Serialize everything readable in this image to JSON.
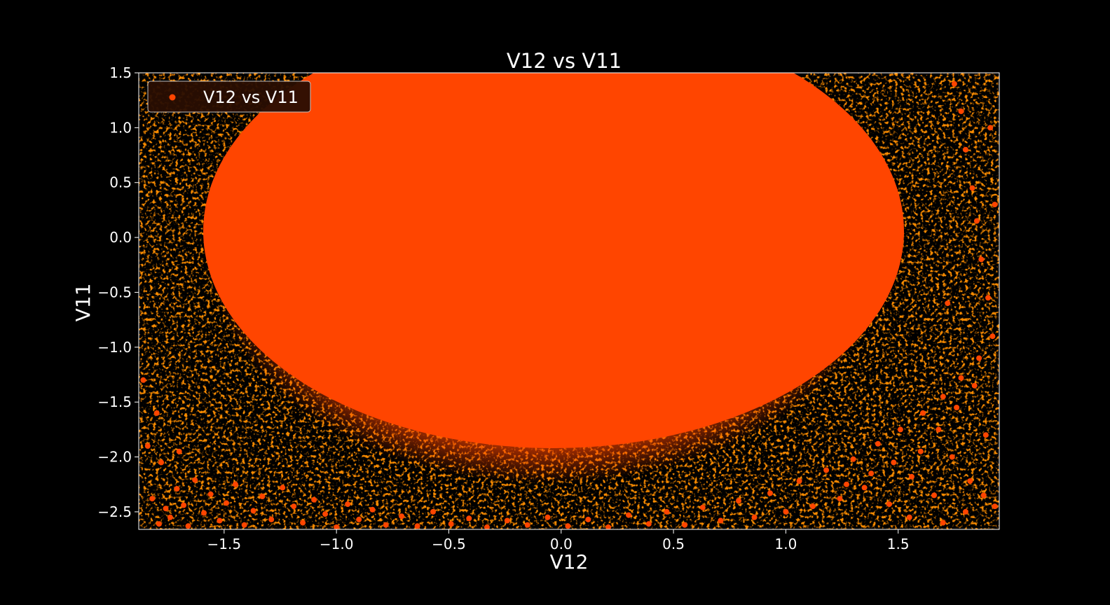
{
  "chart_data": {
    "type": "scatter",
    "title": "V12 vs V11",
    "xlabel": "V12",
    "ylabel": "V11",
    "xlim": [
      -1.88,
      1.95
    ],
    "ylim": [
      -2.66,
      1.5
    ],
    "x_ticks": [
      -1.5,
      -1.0,
      -0.5,
      0.0,
      0.5,
      1.0,
      1.5
    ],
    "x_tick_labels": [
      "−1.5",
      "−1.0",
      "−0.5",
      "0.0",
      "0.5",
      "1.0",
      "1.5"
    ],
    "y_ticks": [
      1.5,
      1.0,
      0.5,
      0.0,
      -0.5,
      -1.0,
      -1.5,
      -2.0,
      -2.5
    ],
    "y_tick_labels": [
      "1.5",
      "1.0",
      "0.5",
      "0.0",
      "−0.5",
      "−1.0",
      "−1.5",
      "−2.0",
      "−2.5"
    ],
    "grid": false,
    "legend_position": "upper-left",
    "series": [
      {
        "name": "V12 vs V11",
        "color": "#ff4500",
        "points": [
          [
            -1.82,
            -2.38
          ],
          [
            -1.79,
            -2.61
          ],
          [
            -1.76,
            -2.47
          ],
          [
            -1.74,
            -2.55
          ],
          [
            -1.71,
            -2.29
          ],
          [
            -1.68,
            -2.44
          ],
          [
            -1.66,
            -2.63
          ],
          [
            -1.63,
            -2.21
          ],
          [
            -1.59,
            -2.51
          ],
          [
            -1.56,
            -2.34
          ],
          [
            -1.52,
            -2.58
          ],
          [
            -1.49,
            -2.42
          ],
          [
            -1.45,
            -2.25
          ],
          [
            -1.41,
            -2.62
          ],
          [
            -1.37,
            -2.49
          ],
          [
            -1.33,
            -2.36
          ],
          [
            -1.29,
            -2.57
          ],
          [
            -1.24,
            -2.28
          ],
          [
            -1.19,
            -2.45
          ],
          [
            -1.15,
            -2.6
          ],
          [
            -1.1,
            -2.39
          ],
          [
            -1.05,
            -2.52
          ],
          [
            -1.0,
            -2.64
          ],
          [
            -0.95,
            -2.43
          ],
          [
            -0.9,
            -2.57
          ],
          [
            -0.84,
            -2.48
          ],
          [
            -0.78,
            -2.62
          ],
          [
            -0.71,
            -2.54
          ],
          [
            -0.64,
            -2.63
          ],
          [
            -0.57,
            -2.5
          ],
          [
            -0.49,
            -2.61
          ],
          [
            -0.41,
            -2.56
          ],
          [
            -0.33,
            -2.64
          ],
          [
            -0.24,
            -2.58
          ],
          [
            -0.15,
            -2.62
          ],
          [
            -0.06,
            -2.55
          ],
          [
            0.03,
            -2.63
          ],
          [
            0.12,
            -2.57
          ],
          [
            0.21,
            -2.64
          ],
          [
            0.3,
            -2.53
          ],
          [
            0.39,
            -2.61
          ],
          [
            0.47,
            -2.5
          ],
          [
            0.55,
            -2.62
          ],
          [
            0.63,
            -2.46
          ],
          [
            0.71,
            -2.58
          ],
          [
            0.79,
            -2.4
          ],
          [
            0.86,
            -2.55
          ],
          [
            0.93,
            -2.33
          ],
          [
            1.0,
            -2.5
          ],
          [
            1.06,
            -2.22
          ],
          [
            1.12,
            -2.45
          ],
          [
            1.18,
            -2.12
          ],
          [
            1.24,
            -2.38
          ],
          [
            1.3,
            -2.02
          ],
          [
            1.35,
            -2.28
          ],
          [
            1.41,
            -1.88
          ],
          [
            1.46,
            -2.43
          ],
          [
            1.51,
            -1.75
          ],
          [
            1.56,
            -2.18
          ],
          [
            1.61,
            -1.6
          ],
          [
            1.66,
            -2.35
          ],
          [
            1.7,
            -1.45
          ],
          [
            1.74,
            -2.0
          ],
          [
            1.78,
            -1.28
          ],
          [
            1.82,
            -2.22
          ],
          [
            1.86,
            -1.1
          ],
          [
            1.89,
            -1.8
          ],
          [
            1.92,
            -0.9
          ],
          [
            1.6,
            -1.95
          ],
          [
            1.68,
            -1.75
          ],
          [
            1.76,
            -1.55
          ],
          [
            1.84,
            -1.35
          ],
          [
            1.48,
            -2.05
          ],
          [
            1.38,
            -2.15
          ],
          [
            1.27,
            -2.25
          ],
          [
            1.9,
            -0.55
          ],
          [
            1.87,
            -0.2
          ],
          [
            1.85,
            0.15
          ],
          [
            1.83,
            0.45
          ],
          [
            1.8,
            0.8
          ],
          [
            1.78,
            1.15
          ],
          [
            1.75,
            1.4
          ],
          [
            1.93,
            0.3
          ],
          [
            1.91,
            1.0
          ],
          [
            1.72,
            -0.6
          ],
          [
            1.8,
            -2.5
          ],
          [
            1.88,
            -2.35
          ],
          [
            1.93,
            -2.45
          ],
          [
            1.7,
            -2.6
          ],
          [
            1.55,
            -2.55
          ],
          [
            -1.84,
            -1.9
          ],
          [
            -1.8,
            -1.6
          ],
          [
            -1.86,
            -1.3
          ],
          [
            -1.78,
            -2.05
          ],
          [
            -1.7,
            -1.95
          ]
        ]
      }
    ]
  }
}
